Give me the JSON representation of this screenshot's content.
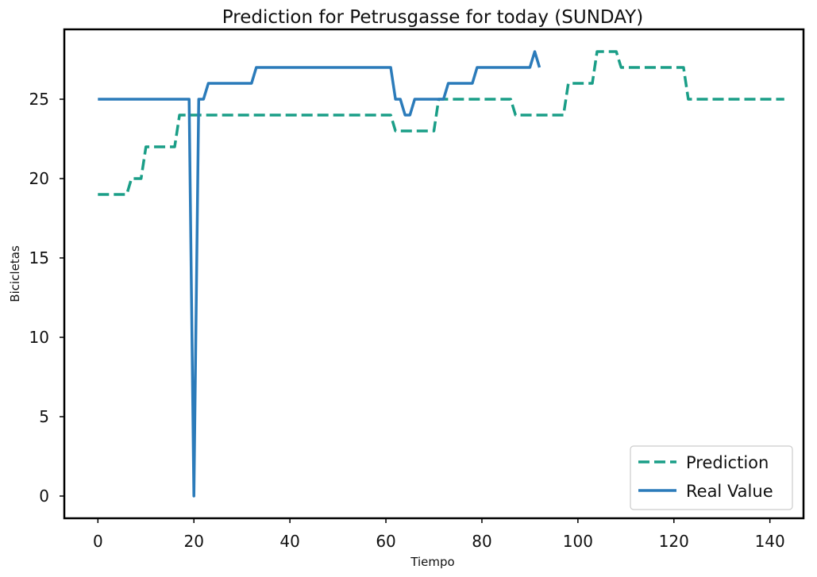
{
  "chart_data": {
    "type": "line",
    "title": "Prediction for Petrusgasse for today (SUNDAY)",
    "xlabel": "Tiempo",
    "ylabel": "Bicicletas",
    "xlim": [
      -7,
      147
    ],
    "ylim": [
      -1.4,
      29.4
    ],
    "xticks": [
      0,
      20,
      40,
      60,
      80,
      100,
      120,
      140
    ],
    "yticks": [
      0,
      5,
      10,
      15,
      20,
      25
    ],
    "grid": false,
    "legend_position": "bottom-right",
    "series": [
      {
        "name": "Prediction",
        "color": "#1a9e87",
        "style": "dashed",
        "x": [
          0,
          6,
          7,
          9,
          10,
          16,
          17,
          61,
          62,
          70,
          71,
          86,
          87,
          97,
          98,
          103,
          104,
          108,
          109,
          122,
          123,
          143
        ],
        "y": [
          19,
          19,
          20,
          20,
          22,
          22,
          24,
          24,
          23,
          23,
          25,
          25,
          24,
          24,
          26,
          26,
          28,
          28,
          27,
          27,
          25,
          25
        ]
      },
      {
        "name": "Real Value",
        "color": "#2b7bba",
        "style": "solid",
        "x": [
          0,
          19,
          20,
          21,
          22,
          23,
          32,
          33,
          61,
          62,
          63,
          64,
          65,
          66,
          72,
          73,
          78,
          79,
          90,
          91,
          92
        ],
        "y": [
          25,
          25,
          0,
          25,
          25,
          26,
          26,
          27,
          27,
          25,
          25,
          24,
          24,
          25,
          25,
          26,
          26,
          27,
          27,
          28,
          27
        ]
      }
    ]
  }
}
